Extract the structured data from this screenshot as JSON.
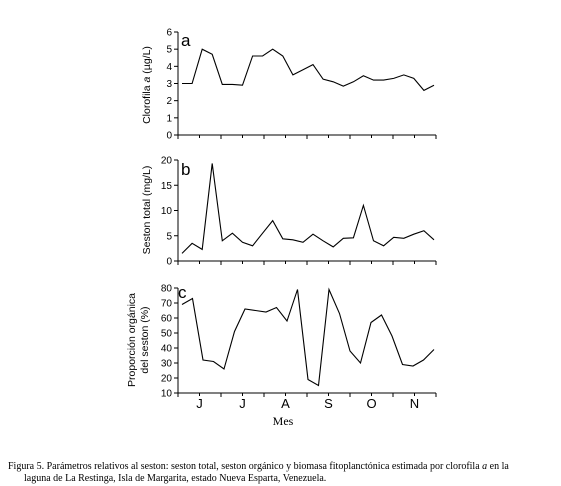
{
  "chart_data": [
    {
      "type": "line",
      "panel_letter": "a",
      "ylabel_prefix": "Clorofila ",
      "ylabel_italic": "a",
      "ylabel_suffix": " (µg/L)",
      "ylim": [
        0,
        6
      ],
      "yticks": [
        0,
        1,
        2,
        3,
        4,
        5,
        6
      ],
      "values": [
        3.0,
        3.0,
        5.0,
        4.7,
        2.95,
        2.95,
        2.9,
        4.6,
        4.6,
        5.0,
        4.6,
        3.5,
        3.8,
        4.1,
        3.25,
        3.1,
        2.85,
        3.1,
        3.45,
        3.2,
        3.2,
        3.3,
        3.5,
        3.3,
        2.6,
        2.9
      ]
    },
    {
      "type": "line",
      "panel_letter": "b",
      "ylabel": "Seston total (mg/L)",
      "ylim": [
        0,
        20
      ],
      "yticks": [
        0,
        5,
        10,
        15,
        20
      ],
      "values": [
        1.5,
        3.5,
        2.3,
        19.3,
        4.0,
        5.5,
        3.7,
        3.0,
        5.5,
        8.0,
        4.4,
        4.2,
        3.7,
        5.3,
        4.0,
        2.8,
        4.5,
        4.6,
        11.0,
        4.0,
        3.0,
        4.7,
        4.5,
        5.3,
        6.0,
        4.2
      ]
    },
    {
      "type": "line",
      "panel_letter": "c",
      "ylabel_line1": "Proporción orgánica",
      "ylabel_line2": "del seston (%)",
      "ylim": [
        10,
        80
      ],
      "yticks": [
        10,
        20,
        30,
        40,
        50,
        60,
        70,
        80
      ],
      "values": [
        69,
        73,
        32,
        31,
        26,
        51,
        66,
        65,
        64,
        67,
        58,
        79,
        19,
        15,
        79,
        63,
        38,
        30,
        57,
        62,
        48,
        29,
        28,
        32,
        39
      ]
    }
  ],
  "x_axis": {
    "months": [
      "J",
      "J",
      "A",
      "S",
      "O",
      "N"
    ],
    "label": "Mes"
  },
  "caption": {
    "line1_before_italic": "Figura 5. Parámetros relativos al seston: seston total, seston orgánico y biomasa fitoplanctónica estimada por clorofila ",
    "line1_italic": "a",
    "line1_after_italic": " en la",
    "line2": "laguna de La Restinga, Isla de Margarita, estado Nueva Esparta, Venezuela."
  }
}
